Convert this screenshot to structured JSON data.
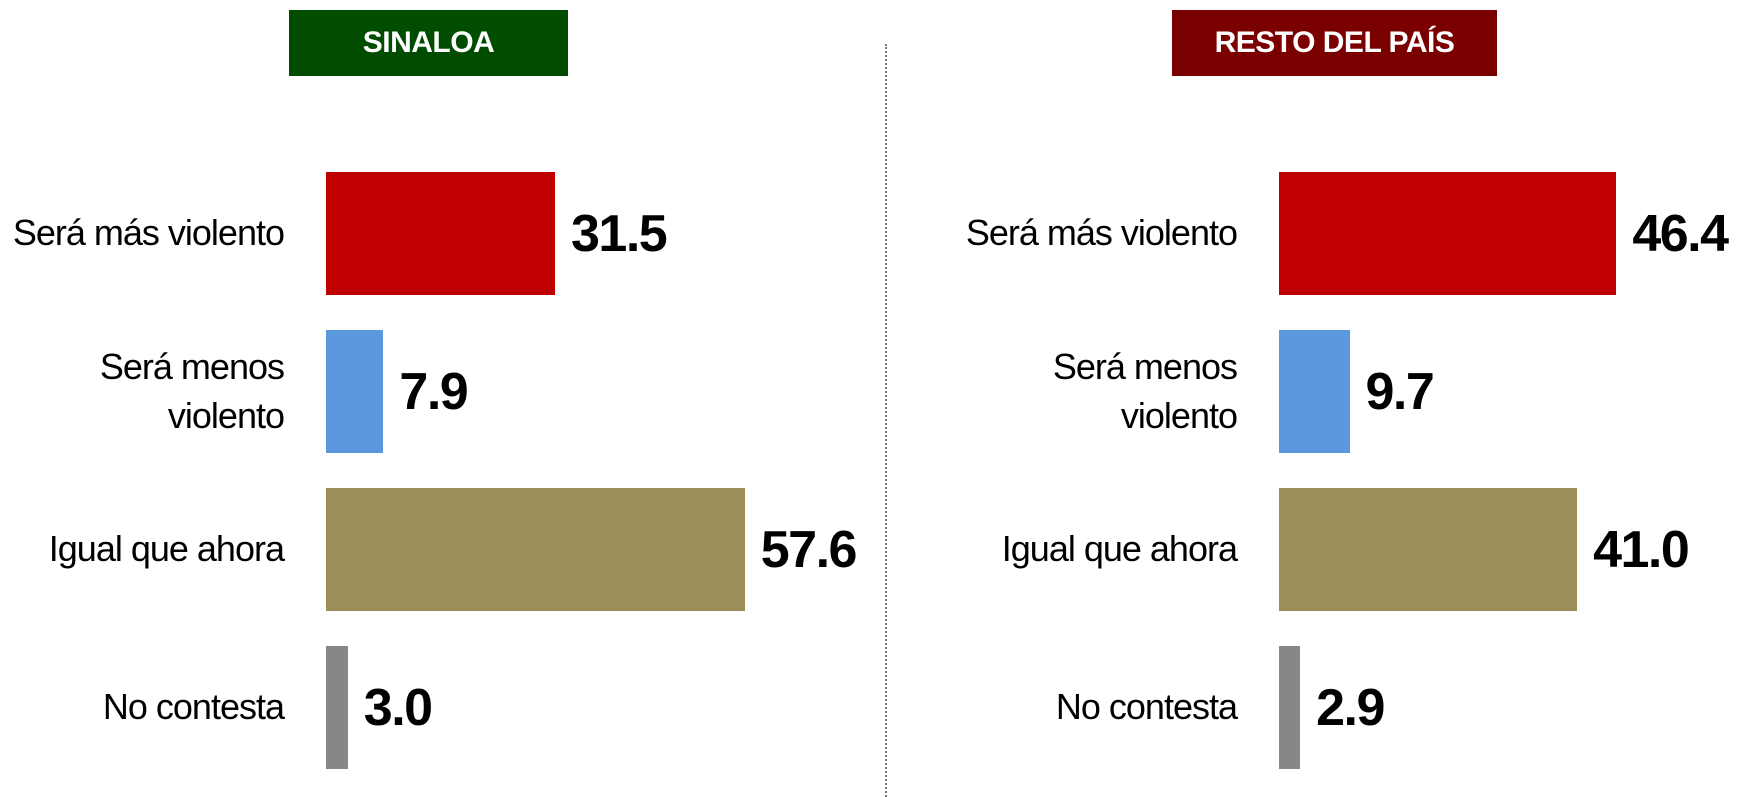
{
  "chart_data": [
    {
      "type": "bar",
      "title": "SINALOA",
      "title_color": "#004d00",
      "categories": [
        "Será más violento",
        "Será menos violento",
        "Igual que ahora",
        "No contesta"
      ],
      "values": [
        31.5,
        7.9,
        57.6,
        3.0
      ],
      "value_labels": [
        "31.5",
        "7.9",
        "57.6",
        "3.0"
      ],
      "colors": [
        "#c00000",
        "#5b97dd",
        "#9b8f57",
        "#878787"
      ]
    },
    {
      "type": "bar",
      "title": "RESTO DEL PAÍS",
      "title_color": "#7a0000",
      "categories": [
        "Será más violento",
        "Será menos violento",
        "Igual que ahora",
        "No contesta"
      ],
      "values": [
        46.4,
        9.7,
        41.0,
        2.9
      ],
      "value_labels": [
        "46.4",
        "9.7",
        "41.0",
        "2.9"
      ],
      "colors": [
        "#c00000",
        "#5b97dd",
        "#9b8f57",
        "#878787"
      ]
    }
  ]
}
